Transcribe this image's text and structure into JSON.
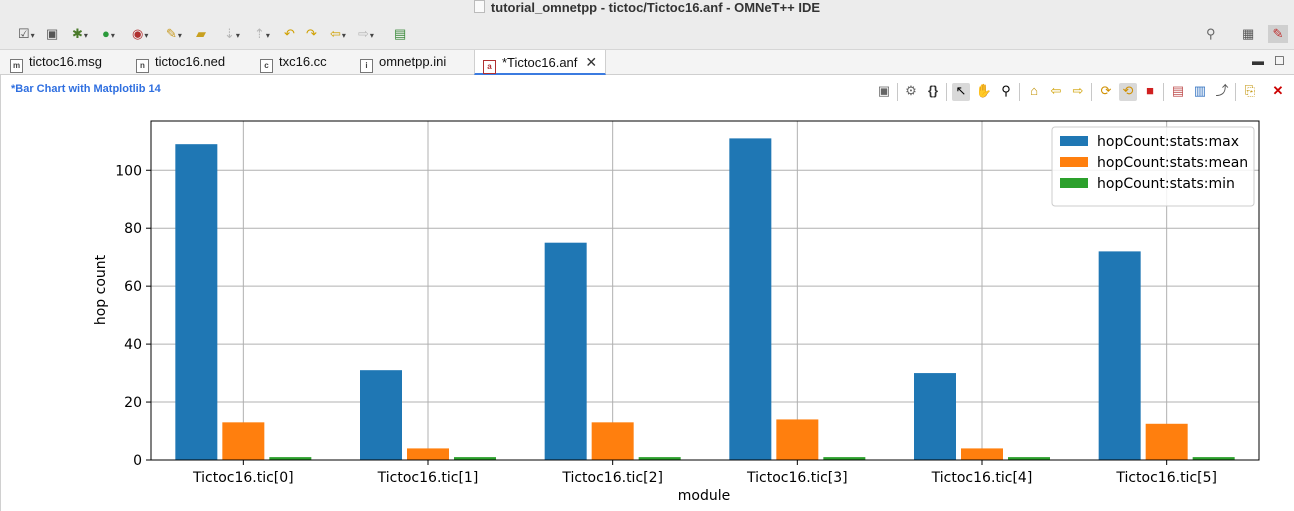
{
  "window": {
    "title": "tutorial_omnetpp - tictoc/Tictoc16.anf - OMNeT++ IDE"
  },
  "toolbar": {
    "icons": [
      "new-icon",
      "save-all-icon",
      "debug-icon",
      "run-icon",
      "profile-icon",
      "wand-icon",
      "folder-icon",
      "prev-annotation-icon",
      "next-annotation-icon",
      "edit-icon",
      "back-icon",
      "forward-icon",
      "new-view-icon"
    ],
    "right_icons": [
      "search-icon",
      "perspective-icon",
      "active-perspective-icon"
    ]
  },
  "tabs": [
    {
      "label": "tictoc16.msg",
      "icon": "m"
    },
    {
      "label": "tictoc16.ned",
      "icon": "n"
    },
    {
      "label": "txc16.cc",
      "icon": "c"
    },
    {
      "label": "omnetpp.ini",
      "icon": "i"
    },
    {
      "label": "*Tictoc16.anf",
      "icon": "a",
      "active": true
    }
  ],
  "editor": {
    "chart_title": "*Bar Chart with Matplotlib 14",
    "chart_toolbar": [
      "save-icon",
      "gear-icon",
      "braces-icon",
      "pointer-icon",
      "hand-icon",
      "zoom-icon",
      "home-icon",
      "back-arrow-icon",
      "forward-arrow-icon",
      "refresh-icon",
      "auto-refresh-icon",
      "stop-icon",
      "copy-icon",
      "export-icon",
      "export-chart-icon",
      "temp-icon",
      "close-icon"
    ]
  },
  "chart_data": {
    "type": "bar",
    "title": "",
    "xlabel": "module",
    "ylabel": "hop count",
    "categories": [
      "Tictoc16.tic[0]",
      "Tictoc16.tic[1]",
      "Tictoc16.tic[2]",
      "Tictoc16.tic[3]",
      "Tictoc16.tic[4]",
      "Tictoc16.tic[5]"
    ],
    "series": [
      {
        "name": "hopCount:stats:max",
        "color": "#1f77b4",
        "values": [
          109,
          31,
          75,
          111,
          30,
          72
        ]
      },
      {
        "name": "hopCount:stats:mean",
        "color": "#ff7f0e",
        "values": [
          13,
          4,
          13,
          14,
          4,
          12.5
        ]
      },
      {
        "name": "hopCount:stats:min",
        "color": "#2ca02c",
        "values": [
          1,
          1,
          1,
          1,
          1,
          1
        ]
      }
    ],
    "ylim": [
      0,
      117
    ],
    "yticks": [
      0,
      20,
      40,
      60,
      80,
      100
    ],
    "grid": true,
    "legend": "top-right"
  }
}
